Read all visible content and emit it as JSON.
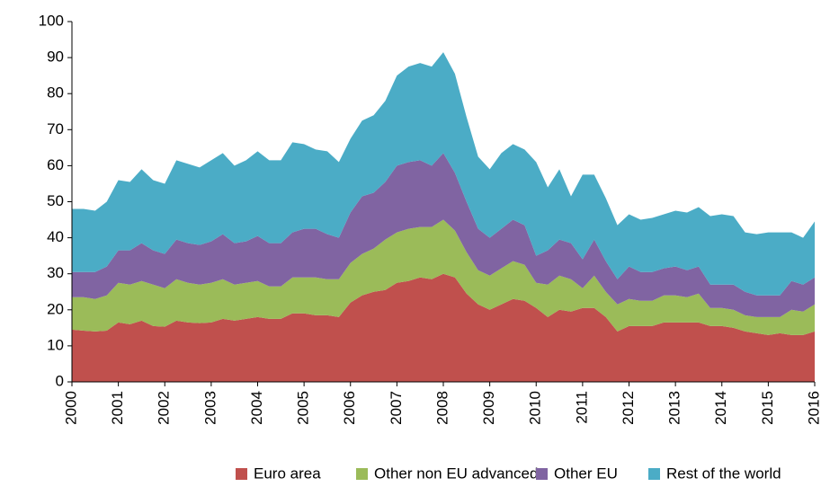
{
  "chart_data": {
    "type": "stacked_area",
    "x": [
      2000,
      2000.25,
      2000.5,
      2000.75,
      2001,
      2001.25,
      2001.5,
      2001.75,
      2002,
      2002.25,
      2002.5,
      2002.75,
      2003,
      2003.25,
      2003.5,
      2003.75,
      2004,
      2004.25,
      2004.5,
      2004.75,
      2005,
      2005.25,
      2005.5,
      2005.75,
      2006,
      2006.25,
      2006.5,
      2006.75,
      2007,
      2007.25,
      2007.5,
      2007.75,
      2008,
      2008.25,
      2008.5,
      2008.75,
      2009,
      2009.25,
      2009.5,
      2009.75,
      2010,
      2010.25,
      2010.5,
      2010.75,
      2011,
      2011.25,
      2011.5,
      2011.75,
      2012,
      2012.25,
      2012.5,
      2012.75,
      2013,
      2013.25,
      2013.5,
      2013.75,
      2014,
      2014.25,
      2014.5,
      2014.75,
      2015,
      2015.25,
      2015.5,
      2015.75,
      2016
    ],
    "series": [
      {
        "name": "Euro area",
        "color": "#c0504d",
        "values": [
          14.5,
          14.2,
          14,
          14.2,
          16.5,
          16,
          17,
          15.5,
          15.3,
          17,
          16.5,
          16.3,
          16.5,
          17.5,
          17,
          17.5,
          18,
          17.5,
          17.5,
          19,
          19,
          18.5,
          18.5,
          18,
          22,
          24,
          25,
          25.5,
          27.5,
          28,
          29,
          28.5,
          30,
          29,
          24.5,
          21.5,
          20,
          21.5,
          23,
          22.5,
          20.5,
          18,
          20,
          19.5,
          20.5,
          20.5,
          18,
          14,
          15.5,
          15.5,
          15.5,
          16.5,
          16.5,
          16.5,
          16.5,
          15.5,
          15.5,
          15,
          14,
          13.5,
          13,
          13.5,
          13,
          13,
          14
        ]
      },
      {
        "name": "Other non EU advanced",
        "color": "#9bbb59",
        "values": [
          9,
          9.3,
          9,
          9.8,
          11,
          11,
          11,
          11.5,
          10.7,
          11.5,
          11,
          10.7,
          11,
          11,
          10,
          10,
          10,
          9,
          9,
          10,
          10,
          10.5,
          10,
          10.5,
          11,
          11.5,
          12,
          14,
          14,
          14.5,
          14,
          14.5,
          15,
          13,
          11.5,
          9.5,
          9.5,
          10,
          10.5,
          10,
          7,
          9,
          9.5,
          9,
          5.5,
          9,
          7,
          7.5,
          7.5,
          7,
          7,
          7.5,
          7.5,
          7,
          8,
          5,
          5,
          5,
          4.5,
          4.5,
          5,
          4.5,
          7,
          6.5,
          7.5
        ]
      },
      {
        "name": "Other EU",
        "color": "#8064a2",
        "values": [
          7,
          7,
          7.5,
          8,
          9,
          9.5,
          10.5,
          9.5,
          9.5,
          11,
          11,
          11,
          11.5,
          12.5,
          11.5,
          11.5,
          12.5,
          12,
          12,
          12.5,
          13.5,
          13.5,
          12.5,
          11.5,
          14,
          16,
          15.5,
          16,
          18.5,
          18.5,
          18.5,
          17,
          18.5,
          16,
          14,
          11.5,
          10.5,
          11,
          11.5,
          11,
          7.5,
          9.5,
          10,
          10,
          8,
          10,
          8.5,
          7,
          9,
          8,
          8,
          7.5,
          8,
          7.5,
          7.5,
          6.5,
          6.5,
          7,
          6.5,
          6,
          6,
          6,
          8,
          7.5,
          7.5
        ]
      },
      {
        "name": "Rest of the world",
        "color": "#4bacc6",
        "values": [
          17.5,
          17.5,
          17,
          18,
          19.5,
          19,
          20.5,
          19.5,
          19.5,
          22,
          22,
          21.5,
          22.5,
          22.5,
          21.5,
          22.5,
          23.5,
          23,
          23,
          25,
          23.5,
          22,
          23,
          21,
          20.5,
          21,
          21.5,
          22.5,
          25,
          26.5,
          27,
          27.5,
          28,
          27.5,
          23.5,
          20,
          19,
          21,
          21,
          21,
          26,
          17.5,
          19.5,
          13,
          23.5,
          18,
          17.5,
          15,
          14.5,
          14.5,
          15,
          15,
          15.5,
          16,
          16.5,
          19,
          19.5,
          19,
          16.5,
          17,
          17.5,
          17.5,
          13.5,
          13,
          15.5
        ]
      }
    ],
    "xlim": [
      2000,
      2016
    ],
    "xticks": [
      2000,
      2001,
      2002,
      2003,
      2004,
      2005,
      2006,
      2007,
      2008,
      2009,
      2010,
      2011,
      2012,
      2013,
      2014,
      2015,
      2016
    ],
    "ylim": [
      0,
      100
    ],
    "yticks": [
      0,
      10,
      20,
      30,
      40,
      50,
      60,
      70,
      80,
      90,
      100
    ],
    "grid": false,
    "legend": "bottom"
  }
}
